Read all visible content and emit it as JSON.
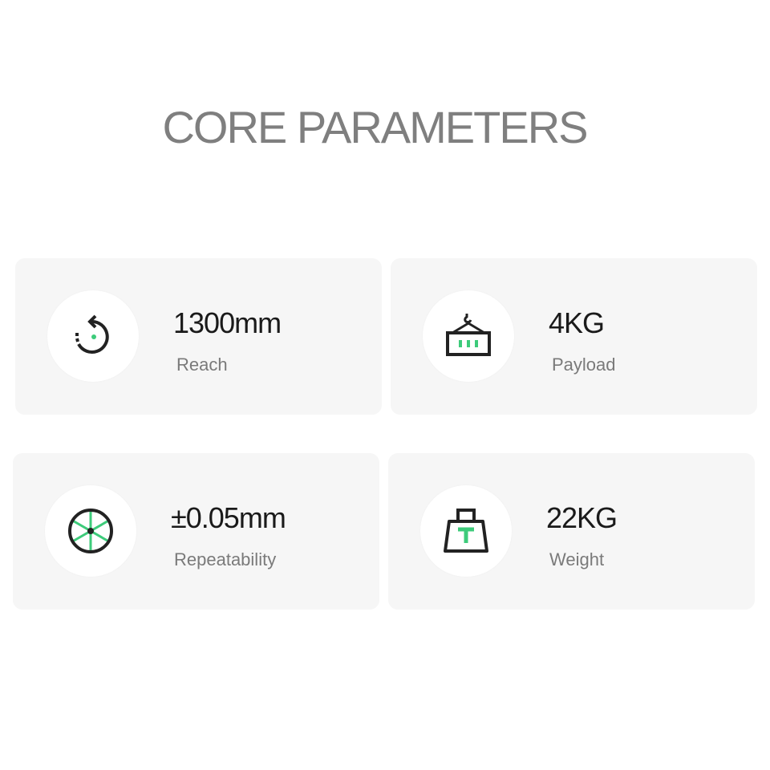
{
  "title": "CORE PARAMETERS",
  "accent": "#3dcb7a",
  "params": [
    {
      "value": "1300mm",
      "label": "Reach",
      "icon": "rotate-icon"
    },
    {
      "value": "4KG",
      "label": "Payload",
      "icon": "container-crane-icon"
    },
    {
      "value": "±0.05mm",
      "label": "Repeatability",
      "icon": "wheel-icon"
    },
    {
      "value": "22KG",
      "label": "Weight",
      "icon": "weight-icon"
    }
  ]
}
